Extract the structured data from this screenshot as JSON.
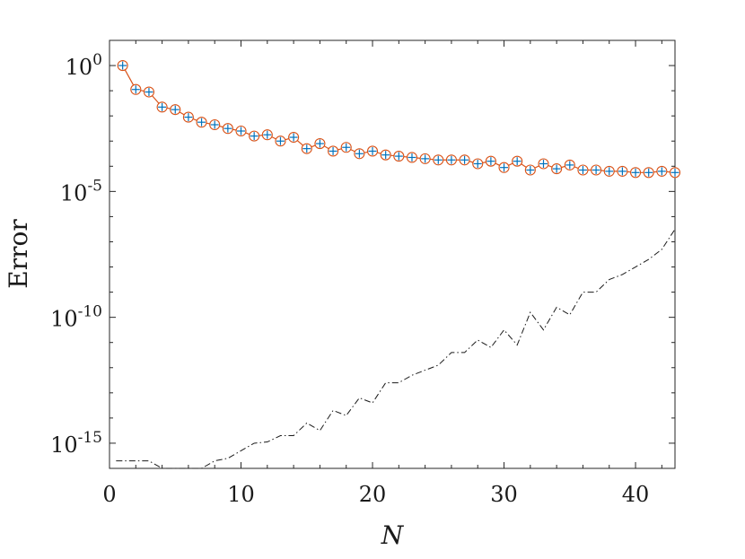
{
  "chart_data": {
    "type": "line",
    "title": "",
    "xlabel": "N",
    "ylabel": "Error",
    "xlim": [
      0,
      43
    ],
    "ylim_exponent": [
      -16,
      1
    ],
    "yscale": "log",
    "grid": false,
    "legend": "none",
    "x_ticks": [
      {
        "value": 0,
        "label": "0"
      },
      {
        "value": 10,
        "label": "10"
      },
      {
        "value": 20,
        "label": "20"
      },
      {
        "value": 30,
        "label": "30"
      },
      {
        "value": 40,
        "label": "40"
      }
    ],
    "y_ticks": [
      {
        "exponent": 0,
        "base": "10",
        "exp": "0"
      },
      {
        "exponent": -5,
        "base": "10",
        "exp": "-5"
      },
      {
        "exponent": -10,
        "base": "10",
        "exp": "-10"
      },
      {
        "exponent": -15,
        "base": "10",
        "exp": "-15"
      }
    ],
    "x": [
      1,
      2,
      3,
      4,
      5,
      6,
      7,
      8,
      9,
      10,
      11,
      12,
      13,
      14,
      15,
      16,
      17,
      18,
      19,
      20,
      21,
      22,
      23,
      24,
      25,
      26,
      27,
      28,
      29,
      30,
      31,
      32,
      33,
      34,
      35,
      36,
      37,
      38,
      39,
      40,
      41,
      42,
      43
    ],
    "series": [
      {
        "style": "orange-solid-circle-markers",
        "color": "#d95319",
        "marker": "circle",
        "values_log10": [
          0,
          -0.95,
          -1.05,
          -1.65,
          -1.75,
          -2.05,
          -2.25,
          -2.35,
          -2.5,
          -2.6,
          -2.8,
          -2.75,
          -3.0,
          -2.85,
          -3.3,
          -3.1,
          -3.4,
          -3.25,
          -3.5,
          -3.4,
          -3.55,
          -3.6,
          -3.65,
          -3.7,
          -3.75,
          -3.75,
          -3.75,
          -3.9,
          -3.8,
          -4.05,
          -3.8,
          -4.15,
          -3.9,
          -4.1,
          -3.95,
          -4.15,
          -4.15,
          -4.2,
          -4.2,
          -4.25,
          -4.25,
          -4.2,
          -4.25
        ]
      },
      {
        "style": "blue-plus-markers",
        "color": "#0072bd",
        "marker": "plus",
        "values_log10": [
          0,
          -0.95,
          -1.05,
          -1.65,
          -1.75,
          -2.05,
          -2.25,
          -2.35,
          -2.5,
          -2.6,
          -2.8,
          -2.75,
          -3.0,
          -2.85,
          -3.3,
          -3.1,
          -3.4,
          -3.25,
          -3.5,
          -3.4,
          -3.55,
          -3.6,
          -3.65,
          -3.7,
          -3.75,
          -3.75,
          -3.75,
          -3.9,
          -3.8,
          -4.05,
          -3.8,
          -4.15,
          -3.9,
          -4.1,
          -3.95,
          -4.15,
          -4.15,
          -4.2,
          -4.2,
          -4.25,
          -4.25,
          -4.2,
          -4.25
        ]
      },
      {
        "style": "black-dash-dot",
        "color": "#1a1a1a",
        "marker": "none",
        "x": [
          0.5,
          3,
          4,
          7,
          8,
          9,
          10,
          11,
          12,
          13,
          14,
          15,
          16,
          17,
          18,
          19,
          20,
          21,
          22,
          23,
          24,
          25,
          26,
          27,
          28,
          29,
          30,
          31,
          32,
          33,
          34,
          35,
          36,
          37,
          38,
          39,
          40,
          41,
          42,
          43
        ],
        "values_log10": [
          -15.7,
          -15.7,
          -16.0,
          -16.0,
          -15.7,
          -15.6,
          -15.3,
          -15.0,
          -14.95,
          -14.7,
          -14.7,
          -14.2,
          -14.5,
          -13.7,
          -13.9,
          -13.2,
          -13.4,
          -12.6,
          -12.6,
          -12.3,
          -12.1,
          -11.9,
          -11.4,
          -11.4,
          -10.9,
          -11.2,
          -10.5,
          -11.1,
          -9.8,
          -10.5,
          -9.6,
          -9.9,
          -9.0,
          -9.0,
          -8.5,
          -8.3,
          -8.0,
          -7.7,
          -7.3,
          -6.5
        ]
      }
    ]
  }
}
